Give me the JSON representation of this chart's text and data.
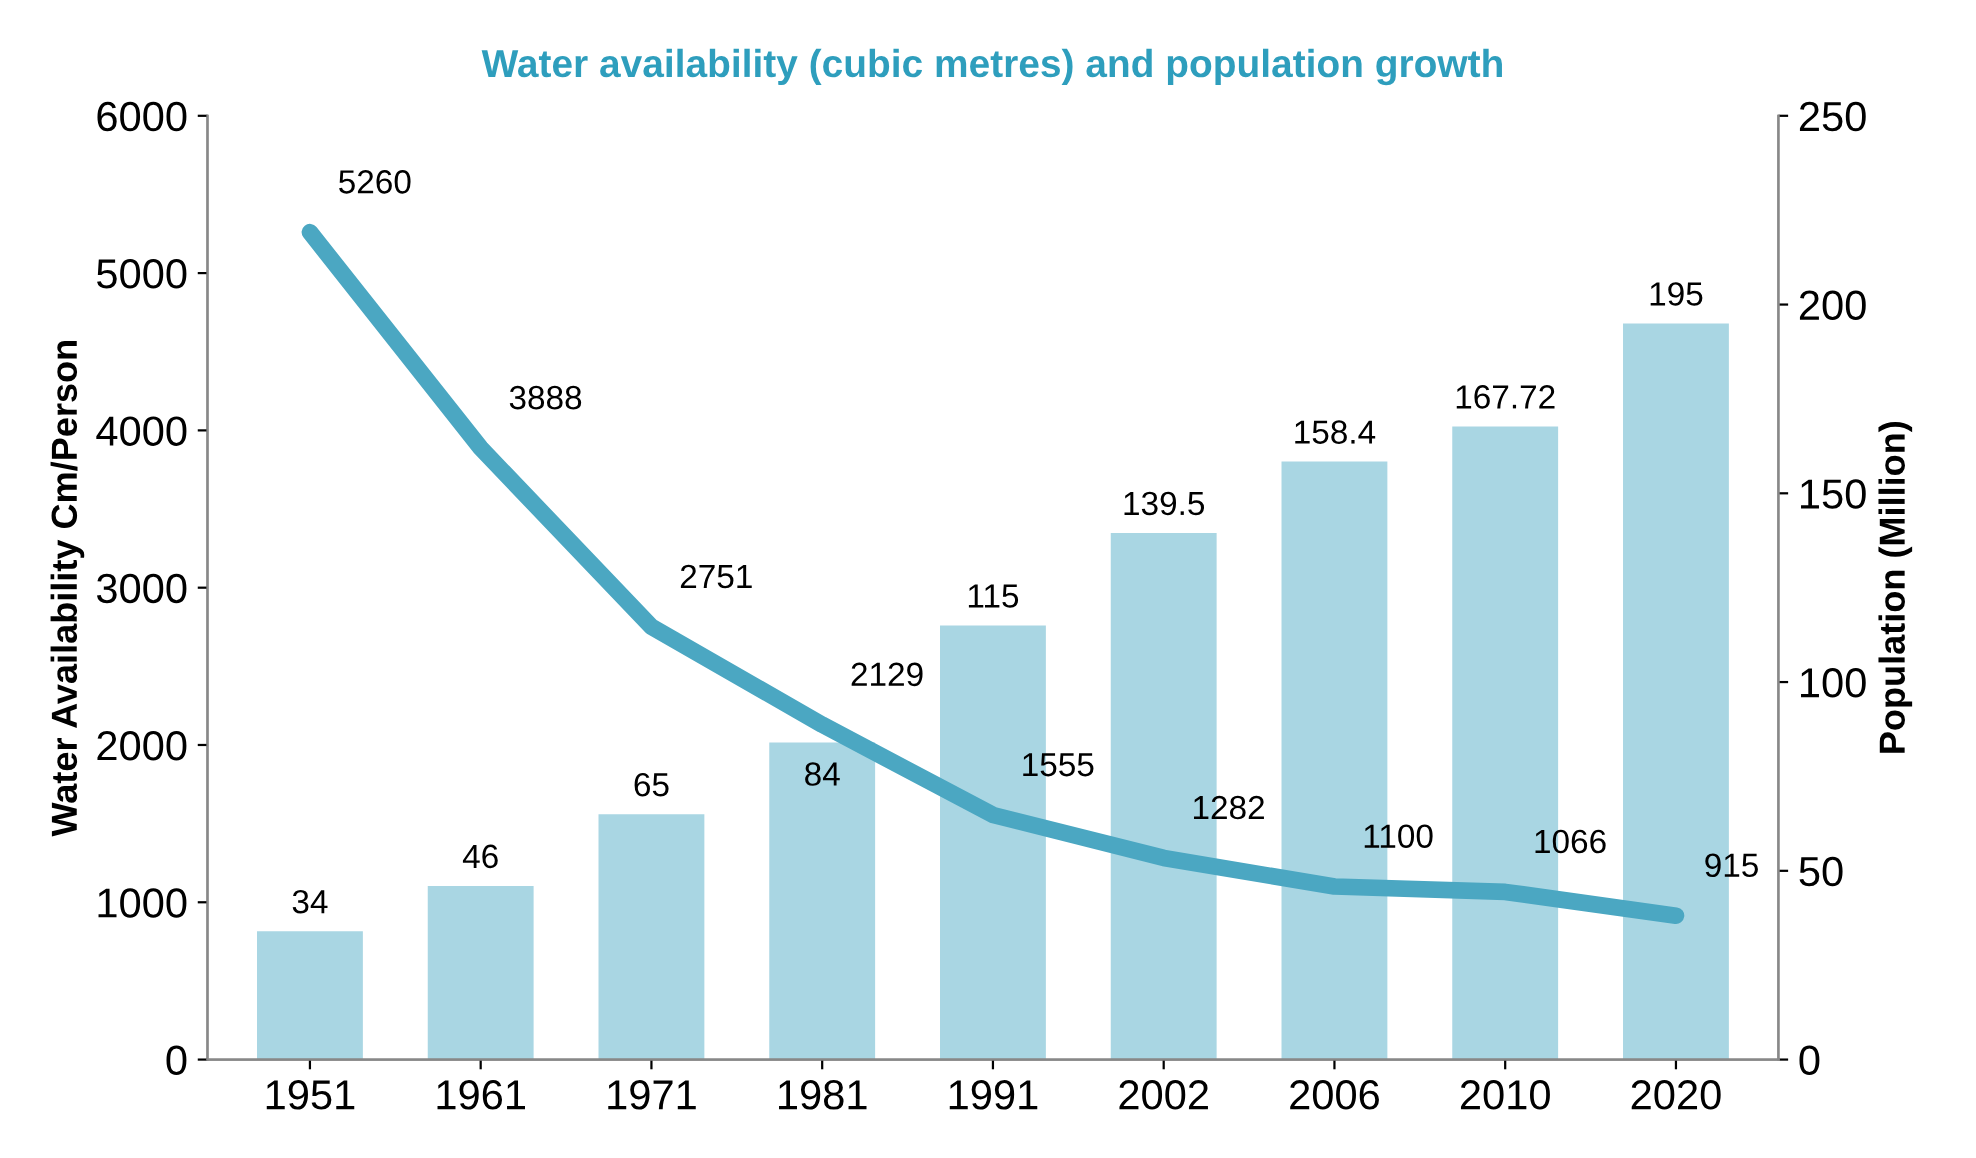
{
  "chart_data": {
    "type": "bar",
    "title": "Water availability (cubic metres) and population growth",
    "categories": [
      "1951",
      "1961",
      "1971",
      "1981",
      "1991",
      "2002",
      "2006",
      "2010",
      "2020"
    ],
    "series": [
      {
        "axis": "y2",
        "color": "#a9d6e3",
        "values": [
          34,
          46,
          65,
          84,
          115,
          139.5,
          158.4,
          167.72,
          195
        ]
      },
      {
        "type": "line",
        "axis": "y",
        "color": "#4ba7c2",
        "values": [
          5260,
          3888,
          2751,
          2129,
          1555,
          1282,
          1100,
          1066,
          915
        ]
      }
    ],
    "ylabel": "Water Availability Cm/Person",
    "y2label": "Population (Million)",
    "ylim": [
      0,
      6000
    ],
    "yticks": [
      0,
      1000,
      2000,
      3000,
      4000,
      5000,
      6000
    ],
    "y2lim": [
      0,
      250
    ],
    "y2ticks": [
      0,
      50,
      100,
      150,
      200,
      250
    ],
    "data_labels": true,
    "grid": false,
    "legend": false,
    "marker": "none",
    "line_style": "solid"
  }
}
